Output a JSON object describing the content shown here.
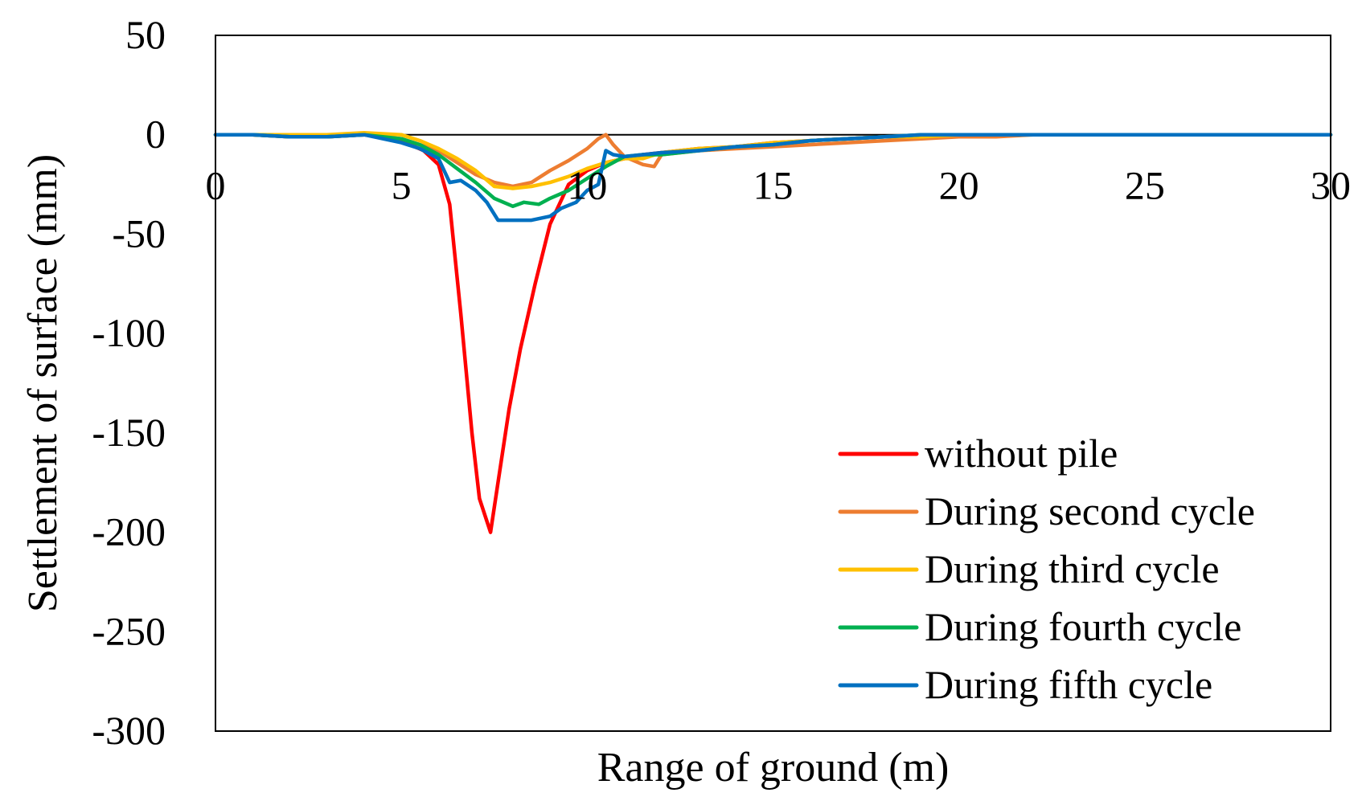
{
  "chart_data": {
    "type": "line",
    "title": "",
    "xlabel": "Range of ground (m)",
    "ylabel": "Settlement of surface (mm)",
    "xlim": [
      0,
      30
    ],
    "ylim": [
      -300,
      50
    ],
    "x_ticks": [
      "0",
      "5",
      "10",
      "15",
      "20",
      "25",
      "30"
    ],
    "y_ticks": [
      "50",
      "0",
      "-50",
      "-100",
      "-150",
      "-200",
      "-250",
      "-300"
    ],
    "grid": false,
    "legend_position": "bottom-right",
    "series": [
      {
        "name": "without pile",
        "color": "#ff0000",
        "x": [
          0,
          1,
          2,
          3,
          4,
          5,
          5.6,
          6,
          6.3,
          6.6,
          6.9,
          7.1,
          7.4,
          7.6,
          7.9,
          8.2,
          8.6,
          9.0,
          9.5,
          10.0,
          10.5,
          11,
          11.5,
          12,
          13,
          14,
          15,
          16,
          17,
          18,
          19,
          20,
          22,
          25,
          30
        ],
        "y": [
          0,
          0,
          -1,
          -1,
          0,
          -3,
          -8,
          -15,
          -35,
          -90,
          -150,
          -183,
          -200,
          -175,
          -138,
          -108,
          -75,
          -45,
          -25,
          -18,
          -14,
          -12,
          -10,
          -9,
          -7,
          -6,
          -4,
          -3,
          -2,
          -1,
          -1,
          0,
          0,
          0,
          0
        ]
      },
      {
        "name": "During second cycle",
        "color": "#ed7d31",
        "x": [
          0,
          1,
          2,
          3,
          4,
          5,
          5.5,
          6,
          6.5,
          7,
          7.5,
          8,
          8.5,
          9,
          9.5,
          10,
          10.3,
          10.5,
          10.7,
          11,
          11.5,
          11.8,
          12,
          12.5,
          13,
          14,
          15,
          16,
          17,
          18,
          19,
          20,
          21,
          22,
          25,
          30
        ],
        "y": [
          0,
          0,
          -1,
          -1,
          0,
          -2,
          -5,
          -8,
          -14,
          -20,
          -24,
          -26,
          -24,
          -18,
          -13,
          -7,
          -2,
          0,
          -5,
          -11,
          -15,
          -16,
          -10,
          -9,
          -8,
          -7,
          -6,
          -5,
          -4,
          -3,
          -2,
          -1,
          -1,
          0,
          0,
          0
        ]
      },
      {
        "name": "During third cycle",
        "color": "#ffc000",
        "x": [
          0,
          1,
          2,
          3,
          4,
          5,
          5.5,
          6,
          6.5,
          7,
          7.5,
          8,
          8.5,
          9,
          9.5,
          10,
          10.5,
          11,
          11.5,
          12,
          13,
          14,
          15,
          16,
          17,
          18,
          19,
          20,
          22,
          25,
          30
        ],
        "y": [
          0,
          0,
          0,
          0,
          1,
          0,
          -3,
          -7,
          -12,
          -18,
          -26,
          -27,
          -26,
          -24,
          -21,
          -17,
          -14,
          -12,
          -12,
          -9,
          -7,
          -6,
          -4,
          -3,
          -2,
          -1,
          -1,
          0,
          0,
          0,
          0
        ]
      },
      {
        "name": "During fourth cycle",
        "color": "#00b050",
        "x": [
          0,
          1,
          2,
          3,
          4,
          5,
          5.5,
          6,
          6.5,
          7,
          7.5,
          8,
          8.3,
          8.7,
          9,
          9.5,
          10,
          10.5,
          11,
          11.5,
          12,
          13,
          14,
          15,
          16,
          17,
          18,
          19,
          20,
          22,
          25,
          30
        ],
        "y": [
          0,
          0,
          -1,
          -1,
          0,
          -2,
          -5,
          -10,
          -17,
          -24,
          -32,
          -36,
          -34,
          -35,
          -32,
          -28,
          -22,
          -16,
          -11,
          -10,
          -10,
          -8,
          -6,
          -5,
          -3,
          -2,
          -1,
          0,
          0,
          0,
          0,
          0
        ]
      },
      {
        "name": "During fifth cycle",
        "color": "#0070c0",
        "x": [
          0,
          1,
          2,
          3,
          4,
          5,
          5.5,
          6,
          6.3,
          6.6,
          7,
          7.3,
          7.6,
          8,
          8.5,
          9,
          9.3,
          9.7,
          10,
          10.3,
          10.5,
          10.7,
          11,
          11.5,
          12,
          13,
          14,
          15,
          16,
          17,
          18,
          19,
          20,
          22,
          25,
          30
        ],
        "y": [
          0,
          0,
          -1,
          -1,
          0,
          -4,
          -7,
          -12,
          -24,
          -23,
          -28,
          -34,
          -43,
          -43,
          -43,
          -41,
          -37,
          -34,
          -28,
          -25,
          -8,
          -10,
          -11,
          -10,
          -9,
          -8,
          -6,
          -5,
          -3,
          -2,
          -1,
          0,
          0,
          0,
          0,
          0
        ]
      }
    ]
  }
}
